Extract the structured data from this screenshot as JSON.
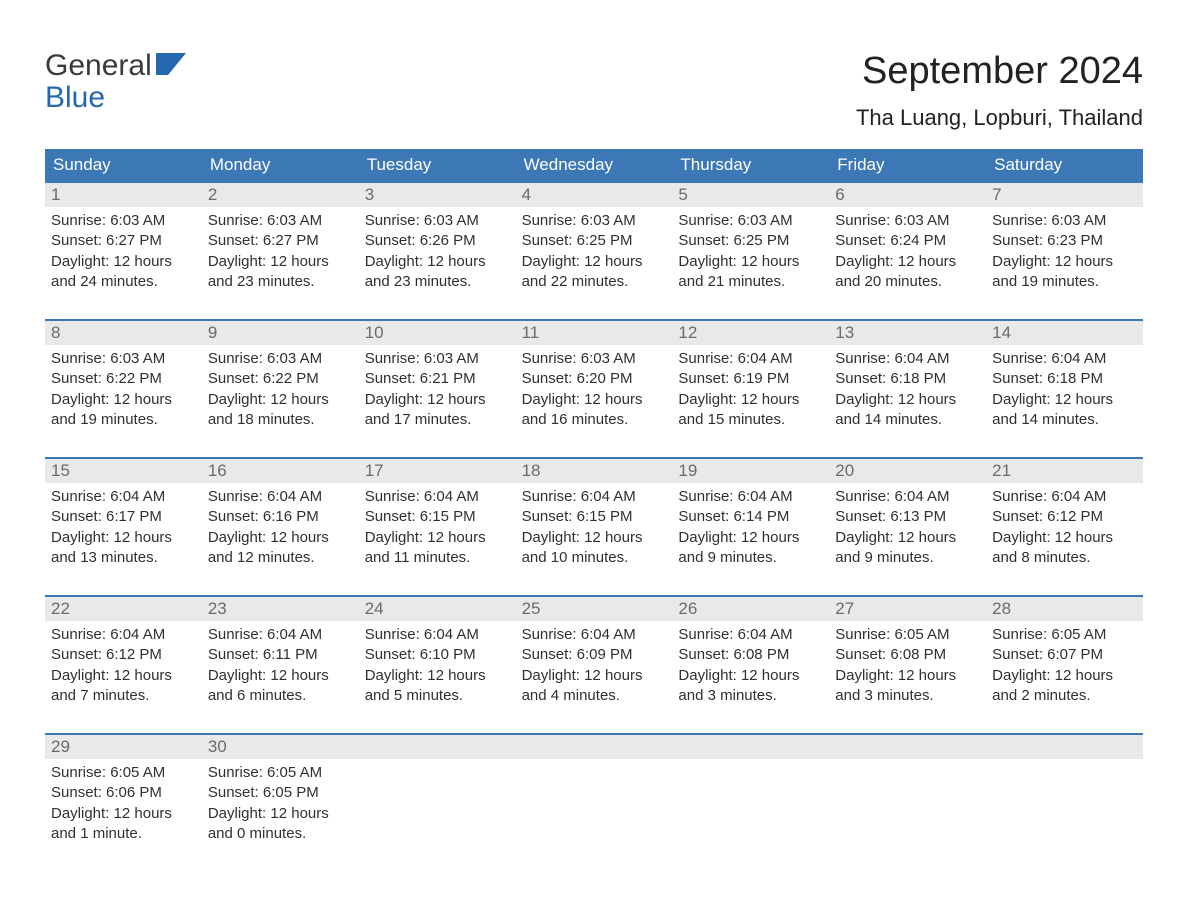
{
  "logo": {
    "line1": "General",
    "line2": "Blue"
  },
  "title": "September 2024",
  "location": "Tha Luang, Lopburi, Thailand",
  "colors": {
    "header_bg": "#3b78b5",
    "header_text": "#ffffff",
    "daynum_bg": "#e9e9e9",
    "daynum_text": "#6b6b6b",
    "body_text": "#303030",
    "logo_blue": "#2568b0",
    "page_bg": "#ffffff",
    "week_border": "#3b78b5"
  },
  "dow": [
    "Sunday",
    "Monday",
    "Tuesday",
    "Wednesday",
    "Thursday",
    "Friday",
    "Saturday"
  ],
  "weeks": [
    [
      {
        "n": "1",
        "sunrise": "Sunrise: 6:03 AM",
        "sunset": "Sunset: 6:27 PM",
        "day": "Daylight: 12 hours and 24 minutes."
      },
      {
        "n": "2",
        "sunrise": "Sunrise: 6:03 AM",
        "sunset": "Sunset: 6:27 PM",
        "day": "Daylight: 12 hours and 23 minutes."
      },
      {
        "n": "3",
        "sunrise": "Sunrise: 6:03 AM",
        "sunset": "Sunset: 6:26 PM",
        "day": "Daylight: 12 hours and 23 minutes."
      },
      {
        "n": "4",
        "sunrise": "Sunrise: 6:03 AM",
        "sunset": "Sunset: 6:25 PM",
        "day": "Daylight: 12 hours and 22 minutes."
      },
      {
        "n": "5",
        "sunrise": "Sunrise: 6:03 AM",
        "sunset": "Sunset: 6:25 PM",
        "day": "Daylight: 12 hours and 21 minutes."
      },
      {
        "n": "6",
        "sunrise": "Sunrise: 6:03 AM",
        "sunset": "Sunset: 6:24 PM",
        "day": "Daylight: 12 hours and 20 minutes."
      },
      {
        "n": "7",
        "sunrise": "Sunrise: 6:03 AM",
        "sunset": "Sunset: 6:23 PM",
        "day": "Daylight: 12 hours and 19 minutes."
      }
    ],
    [
      {
        "n": "8",
        "sunrise": "Sunrise: 6:03 AM",
        "sunset": "Sunset: 6:22 PM",
        "day": "Daylight: 12 hours and 19 minutes."
      },
      {
        "n": "9",
        "sunrise": "Sunrise: 6:03 AM",
        "sunset": "Sunset: 6:22 PM",
        "day": "Daylight: 12 hours and 18 minutes."
      },
      {
        "n": "10",
        "sunrise": "Sunrise: 6:03 AM",
        "sunset": "Sunset: 6:21 PM",
        "day": "Daylight: 12 hours and 17 minutes."
      },
      {
        "n": "11",
        "sunrise": "Sunrise: 6:03 AM",
        "sunset": "Sunset: 6:20 PM",
        "day": "Daylight: 12 hours and 16 minutes."
      },
      {
        "n": "12",
        "sunrise": "Sunrise: 6:04 AM",
        "sunset": "Sunset: 6:19 PM",
        "day": "Daylight: 12 hours and 15 minutes."
      },
      {
        "n": "13",
        "sunrise": "Sunrise: 6:04 AM",
        "sunset": "Sunset: 6:18 PM",
        "day": "Daylight: 12 hours and 14 minutes."
      },
      {
        "n": "14",
        "sunrise": "Sunrise: 6:04 AM",
        "sunset": "Sunset: 6:18 PM",
        "day": "Daylight: 12 hours and 14 minutes."
      }
    ],
    [
      {
        "n": "15",
        "sunrise": "Sunrise: 6:04 AM",
        "sunset": "Sunset: 6:17 PM",
        "day": "Daylight: 12 hours and 13 minutes."
      },
      {
        "n": "16",
        "sunrise": "Sunrise: 6:04 AM",
        "sunset": "Sunset: 6:16 PM",
        "day": "Daylight: 12 hours and 12 minutes."
      },
      {
        "n": "17",
        "sunrise": "Sunrise: 6:04 AM",
        "sunset": "Sunset: 6:15 PM",
        "day": "Daylight: 12 hours and 11 minutes."
      },
      {
        "n": "18",
        "sunrise": "Sunrise: 6:04 AM",
        "sunset": "Sunset: 6:15 PM",
        "day": "Daylight: 12 hours and 10 minutes."
      },
      {
        "n": "19",
        "sunrise": "Sunrise: 6:04 AM",
        "sunset": "Sunset: 6:14 PM",
        "day": "Daylight: 12 hours and 9 minutes."
      },
      {
        "n": "20",
        "sunrise": "Sunrise: 6:04 AM",
        "sunset": "Sunset: 6:13 PM",
        "day": "Daylight: 12 hours and 9 minutes."
      },
      {
        "n": "21",
        "sunrise": "Sunrise: 6:04 AM",
        "sunset": "Sunset: 6:12 PM",
        "day": "Daylight: 12 hours and 8 minutes."
      }
    ],
    [
      {
        "n": "22",
        "sunrise": "Sunrise: 6:04 AM",
        "sunset": "Sunset: 6:12 PM",
        "day": "Daylight: 12 hours and 7 minutes."
      },
      {
        "n": "23",
        "sunrise": "Sunrise: 6:04 AM",
        "sunset": "Sunset: 6:11 PM",
        "day": "Daylight: 12 hours and 6 minutes."
      },
      {
        "n": "24",
        "sunrise": "Sunrise: 6:04 AM",
        "sunset": "Sunset: 6:10 PM",
        "day": "Daylight: 12 hours and 5 minutes."
      },
      {
        "n": "25",
        "sunrise": "Sunrise: 6:04 AM",
        "sunset": "Sunset: 6:09 PM",
        "day": "Daylight: 12 hours and 4 minutes."
      },
      {
        "n": "26",
        "sunrise": "Sunrise: 6:04 AM",
        "sunset": "Sunset: 6:08 PM",
        "day": "Daylight: 12 hours and 3 minutes."
      },
      {
        "n": "27",
        "sunrise": "Sunrise: 6:05 AM",
        "sunset": "Sunset: 6:08 PM",
        "day": "Daylight: 12 hours and 3 minutes."
      },
      {
        "n": "28",
        "sunrise": "Sunrise: 6:05 AM",
        "sunset": "Sunset: 6:07 PM",
        "day": "Daylight: 12 hours and 2 minutes."
      }
    ],
    [
      {
        "n": "29",
        "sunrise": "Sunrise: 6:05 AM",
        "sunset": "Sunset: 6:06 PM",
        "day": "Daylight: 12 hours and 1 minute."
      },
      {
        "n": "30",
        "sunrise": "Sunrise: 6:05 AM",
        "sunset": "Sunset: 6:05 PM",
        "day": "Daylight: 12 hours and 0 minutes."
      },
      null,
      null,
      null,
      null,
      null
    ]
  ]
}
